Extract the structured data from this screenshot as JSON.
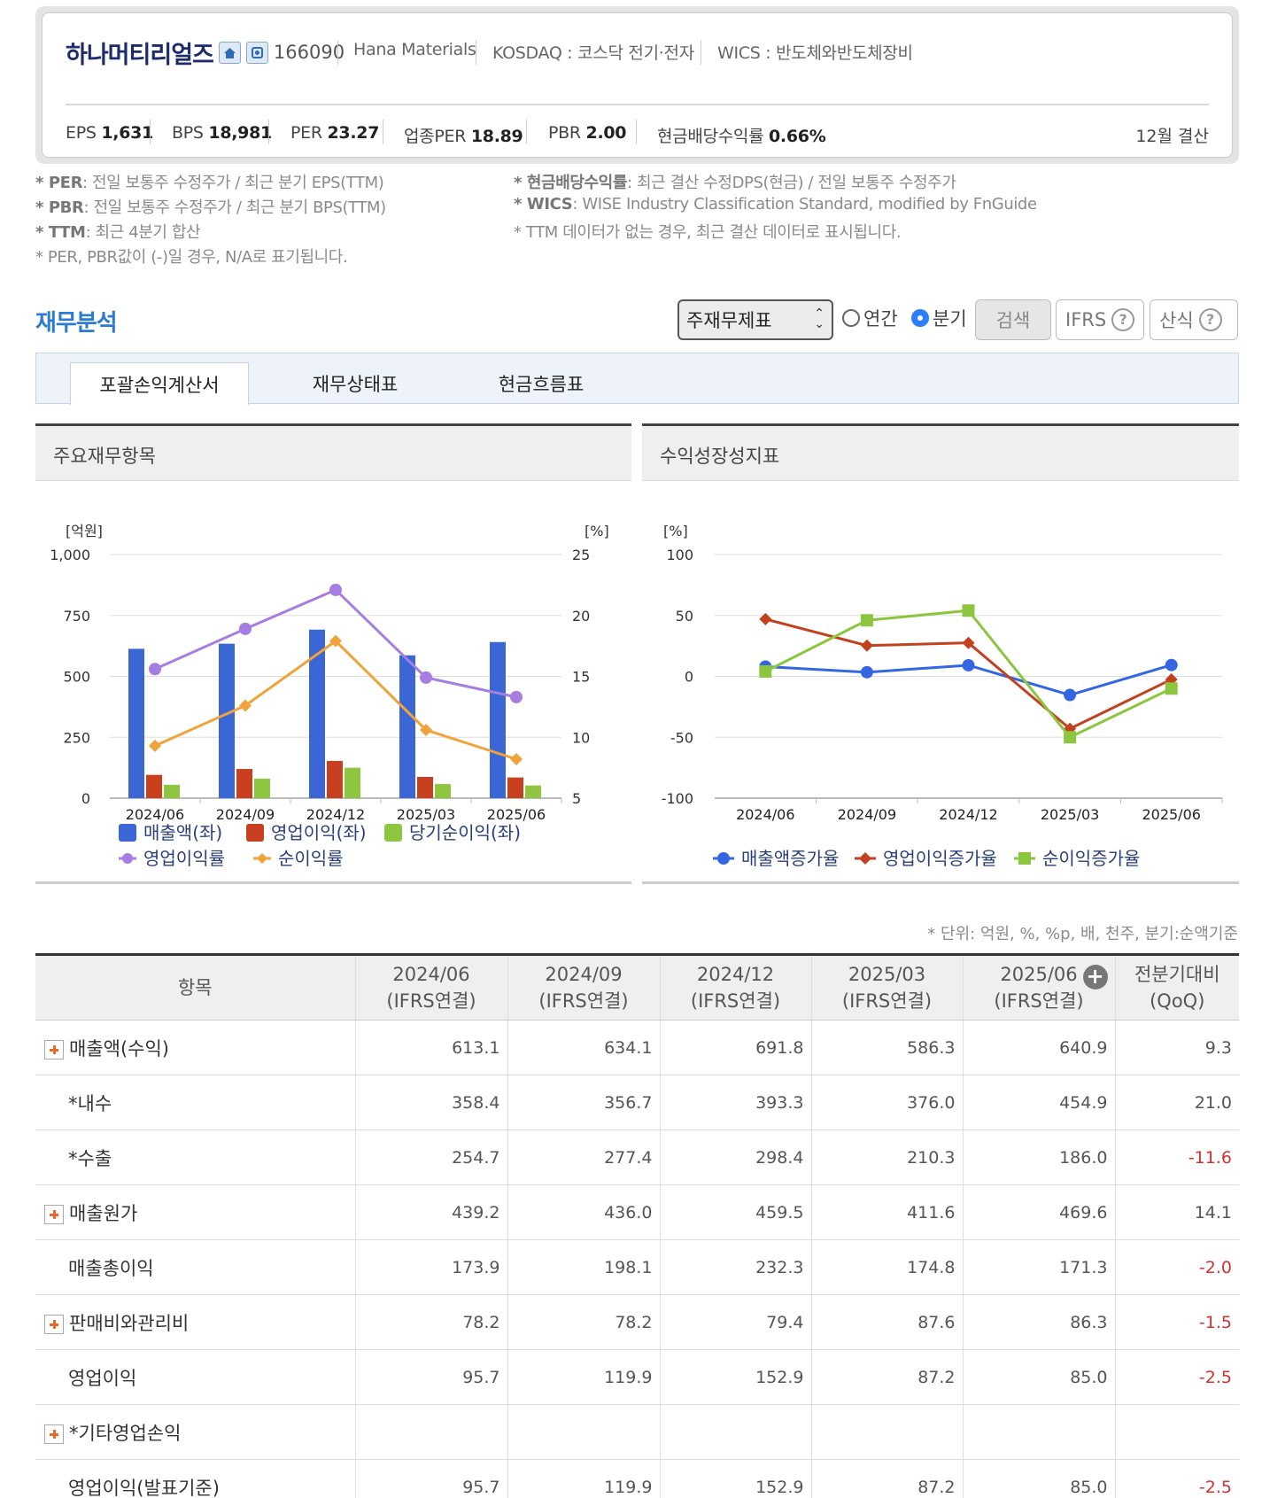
{
  "company": {
    "name": "하나머티리얼즈",
    "code": "166090",
    "english_name": "Hana Materials",
    "market": "KOSDAQ : 코스닥 전기·전자",
    "wics": "WICS : 반도체와반도체장비"
  },
  "stats": [
    {
      "label": "EPS",
      "value": "1,631"
    },
    {
      "label": "BPS",
      "value": "18,981"
    },
    {
      "label": "PER",
      "value": "23.27"
    },
    {
      "label": "업종PER",
      "value": "18.89"
    },
    {
      "label": "PBR",
      "value": "2.00"
    },
    {
      "label": "현금배당수익률",
      "value": "0.66%"
    }
  ],
  "settlement": "12월 결산",
  "notes": {
    "left": [
      {
        "key": "* PER",
        "text": ": 전일 보통주 수정주가 / 최근 분기 EPS(TTM)"
      },
      {
        "key": "* PBR",
        "text": ": 전일 보통주 수정주가 / 최근 분기 BPS(TTM)"
      },
      {
        "key": "* TTM",
        "text": ": 최근 4분기 합산"
      },
      {
        "key": "",
        "text": "* PER, PBR값이 (-)일 경우, N/A로 표기됩니다."
      }
    ],
    "right": [
      {
        "key": "* 현금배당수익률",
        "text": ": 최근 결산 수정DPS(현금) / 전일 보통주 수정주가"
      },
      {
        "key": "* WICS",
        "text": ": WISE Industry Classification Standard, modified by FnGuide"
      },
      {
        "key": "",
        "text": "* TTM 데이터가 없는 경우, 최근 결산 데이터로 표시됩니다."
      }
    ]
  },
  "section_title": "재무분석",
  "controls": {
    "select_value": "주재무제표",
    "radio_annual": "연간",
    "radio_quarter": "분기",
    "search": "검색",
    "ifrs": "IFRS",
    "formula": "산식",
    "help_glyph": "?"
  },
  "tabs": [
    "포괄손익계산서",
    "재무상태표",
    "현금흐름표"
  ],
  "panels": {
    "left_title": "주요재무항목",
    "right_title": "수익성장성지표"
  },
  "icons": {
    "home": "home-icon",
    "phone": "phone-icon",
    "select_arrow": "chevron-updown-icon",
    "help": "question-circle-icon",
    "expand": "plus-square-icon",
    "add_column": "plus-circle-icon"
  },
  "colors": {
    "blue": "#3a66d6",
    "red": "#c8401d",
    "green": "#8ec63f",
    "purple": "#a67de0",
    "orange": "#f0a33a",
    "growth_blue": "#3366e0",
    "growth_red": "#c2411f",
    "growth_green": "#8cc63f",
    "title_blue": "#2c7bd0",
    "negative": "#d43030"
  },
  "chart_data": [
    {
      "type": "bar",
      "categories": [
        "2024/06",
        "2024/09",
        "2024/12",
        "2025/03",
        "2025/06"
      ],
      "y_left": {
        "label": "[억원]",
        "ticks": [
          "0",
          "250",
          "500",
          "750",
          "1,000"
        ],
        "ylim": [
          0,
          1000
        ]
      },
      "y_right": {
        "label": "[%]",
        "ticks": [
          "5",
          "10",
          "15",
          "20",
          "25"
        ],
        "ylim": [
          5,
          25
        ]
      },
      "series": [
        {
          "name": "매출액(좌)",
          "type": "bar",
          "axis": "left",
          "values": [
            613.1,
            634.1,
            691.8,
            586.3,
            640.9
          ]
        },
        {
          "name": "영업이익(좌)",
          "type": "bar",
          "axis": "left",
          "values": [
            95.7,
            119.9,
            152.9,
            87.2,
            85.0
          ]
        },
        {
          "name": "당기순이익(좌)",
          "type": "bar",
          "axis": "left",
          "values": [
            55,
            80,
            125,
            58,
            52
          ]
        },
        {
          "name": "영업이익률",
          "type": "line",
          "axis": "right",
          "values": [
            15.6,
            18.9,
            22.1,
            14.9,
            13.3
          ]
        },
        {
          "name": "순이익률",
          "type": "line",
          "axis": "right",
          "values": [
            9.3,
            12.6,
            17.9,
            10.6,
            8.2
          ]
        }
      ],
      "grid": true,
      "legend": "bottom"
    },
    {
      "type": "line",
      "categories": [
        "2024/06",
        "2024/09",
        "2024/12",
        "2025/03",
        "2025/06"
      ],
      "y": {
        "label": "[%]",
        "ticks": [
          "-100",
          "-50",
          "0",
          "50",
          "100"
        ],
        "ylim": [
          -100,
          100
        ]
      },
      "series": [
        {
          "name": "매출액증가율",
          "values": [
            8,
            3.4,
            9.1,
            -15.3,
            9.3
          ]
        },
        {
          "name": "영업이익증가율",
          "values": [
            47,
            25.3,
            27.5,
            -43,
            -2.5
          ]
        },
        {
          "name": "순이익증가율",
          "values": [
            4,
            46,
            54,
            -50,
            -10
          ]
        }
      ],
      "grid": true,
      "legend": "bottom"
    }
  ],
  "table": {
    "unit_note": "* 단위: 억원, %, %p, 배, 천주, 분기:순액기준",
    "headers": {
      "item": "항목",
      "periods": [
        {
          "date": "2024/06",
          "basis": "(IFRS연결)"
        },
        {
          "date": "2024/09",
          "basis": "(IFRS연결)"
        },
        {
          "date": "2024/12",
          "basis": "(IFRS연결)"
        },
        {
          "date": "2025/03",
          "basis": "(IFRS연결)"
        },
        {
          "date": "2025/06",
          "basis": "(IFRS연결)"
        }
      ],
      "qoq_line1": "전분기대비",
      "qoq_line2": "(QoQ)",
      "add_glyph": "+"
    },
    "rows": [
      {
        "label": "매출액(수익)",
        "expandable": true,
        "values": [
          "613.1",
          "634.1",
          "691.8",
          "586.3",
          "640.9"
        ],
        "qoq": "9.3"
      },
      {
        "label": "*내수",
        "expandable": false,
        "values": [
          "358.4",
          "356.7",
          "393.3",
          "376.0",
          "454.9"
        ],
        "qoq": "21.0"
      },
      {
        "label": "*수출",
        "expandable": false,
        "values": [
          "254.7",
          "277.4",
          "298.4",
          "210.3",
          "186.0"
        ],
        "qoq": "-11.6"
      },
      {
        "label": "매출원가",
        "expandable": true,
        "values": [
          "439.2",
          "436.0",
          "459.5",
          "411.6",
          "469.6"
        ],
        "qoq": "14.1"
      },
      {
        "label": "매출총이익",
        "expandable": false,
        "values": [
          "173.9",
          "198.1",
          "232.3",
          "174.8",
          "171.3"
        ],
        "qoq": "-2.0"
      },
      {
        "label": "판매비와관리비",
        "expandable": true,
        "values": [
          "78.2",
          "78.2",
          "79.4",
          "87.6",
          "86.3"
        ],
        "qoq": "-1.5"
      },
      {
        "label": "영업이익",
        "expandable": false,
        "values": [
          "95.7",
          "119.9",
          "152.9",
          "87.2",
          "85.0"
        ],
        "qoq": "-2.5"
      },
      {
        "label": "*기타영업손익",
        "expandable": true,
        "values": [
          "",
          "",
          "",
          "",
          ""
        ],
        "qoq": ""
      },
      {
        "label": "영업이익(발표기준)",
        "expandable": false,
        "values": [
          "95.7",
          "119.9",
          "152.9",
          "87.2",
          "85.0"
        ],
        "qoq": "-2.5"
      }
    ]
  }
}
